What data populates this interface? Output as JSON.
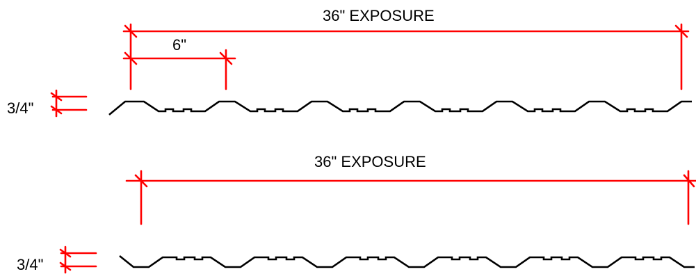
{
  "colors": {
    "dimension": "#ff0000",
    "profile": "#000000",
    "background": "#ffffff"
  },
  "top_panel": {
    "exposure_label": "36\" EXPOSURE",
    "spacing_label": "6\"",
    "rib_height_label": "3/4\""
  },
  "bottom_panel": {
    "exposure_label": "36\" EXPOSURE",
    "rib_height_label": "3/4\""
  }
}
